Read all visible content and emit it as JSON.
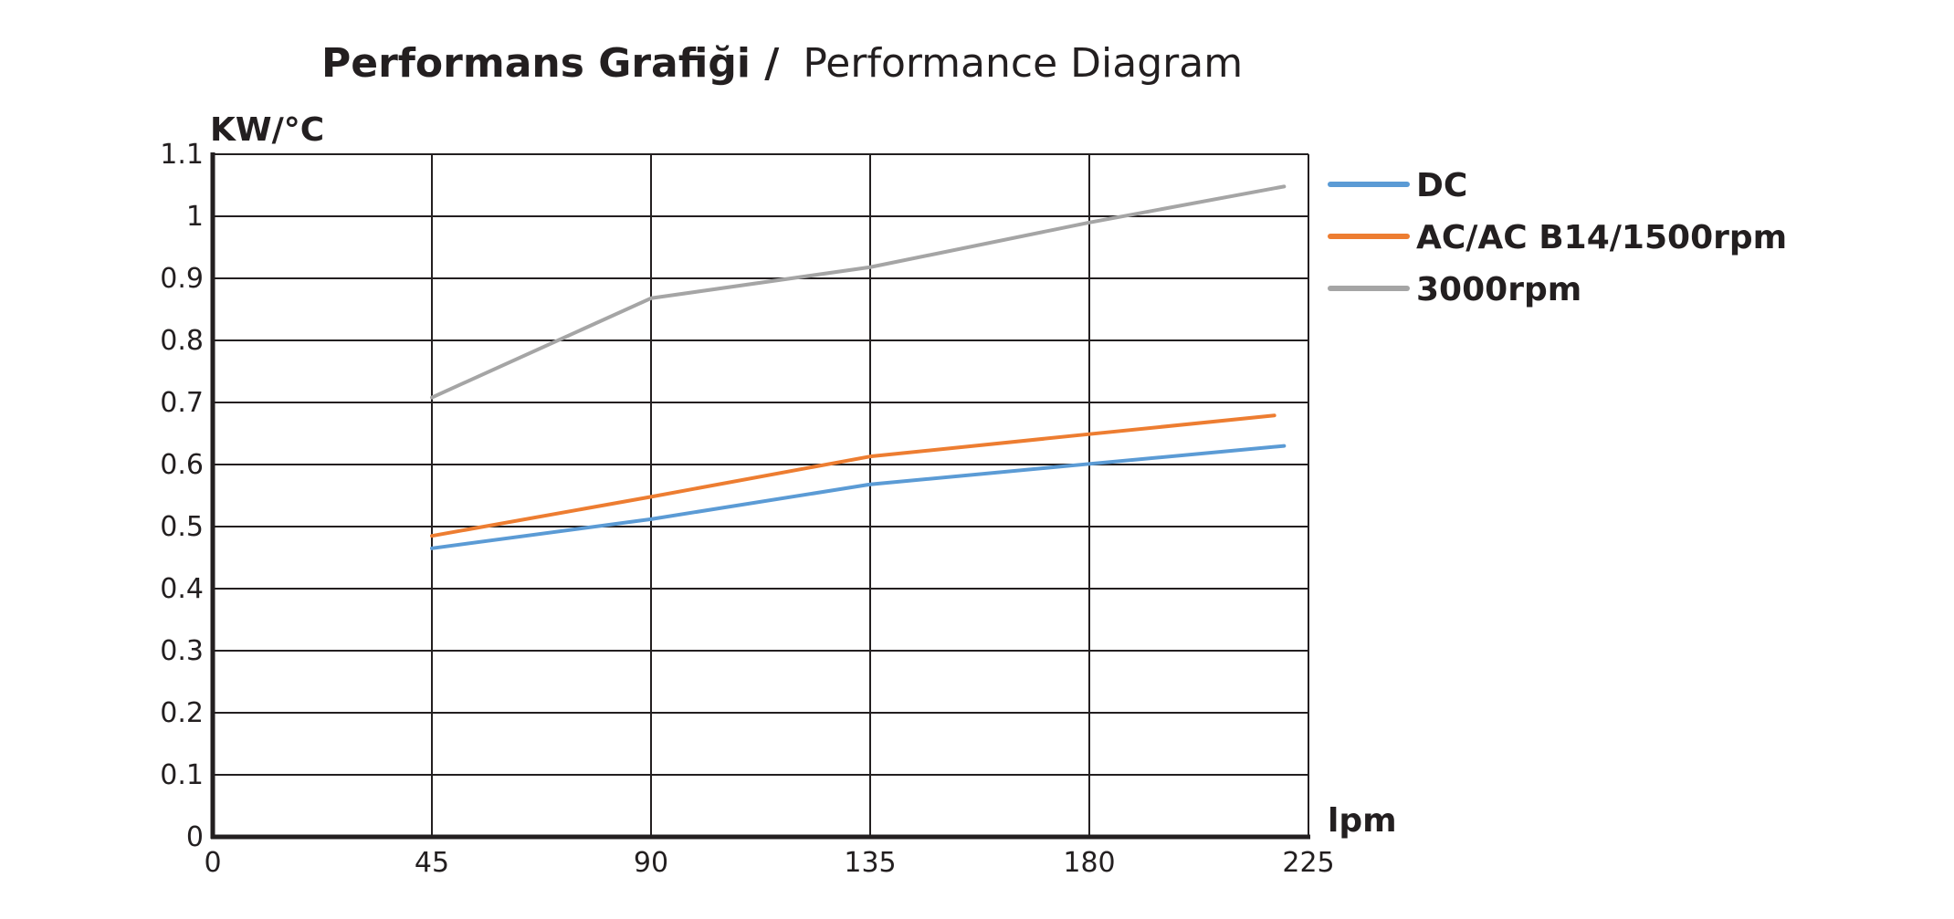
{
  "chart_data": {
    "type": "line",
    "title_bold": "Performans Grafiği /",
    "title_normal": "Performance Diagram",
    "ylabel": "KW/°C",
    "xlabel": "lpm",
    "x_ticks": [
      "0",
      "45",
      "90",
      "135",
      "180",
      "225"
    ],
    "y_ticks": [
      "0",
      "0.1",
      "0.2",
      "0.3",
      "0.4",
      "0.5",
      "0.6",
      "0.7",
      "0.8",
      "0.9",
      "1",
      "1.1"
    ],
    "xlim": [
      0,
      225
    ],
    "ylim": [
      0,
      1.1
    ],
    "grid": true,
    "legend_position": "right",
    "series": [
      {
        "name": "DC",
        "color": "#5b9bd5",
        "x": [
          45,
          90,
          135,
          180,
          220
        ],
        "y": [
          0.465,
          0.512,
          0.568,
          0.601,
          0.63
        ]
      },
      {
        "name": "AC/AC B14/1500rpm",
        "color": "#ed7d31",
        "x": [
          45,
          90,
          135,
          180,
          218
        ],
        "y": [
          0.485,
          0.548,
          0.613,
          0.649,
          0.679
        ]
      },
      {
        "name": "3000rpm",
        "color": "#a5a5a5",
        "x": [
          45,
          90,
          135,
          180,
          220
        ],
        "y": [
          0.708,
          0.868,
          0.918,
          0.99,
          1.048
        ]
      }
    ]
  }
}
